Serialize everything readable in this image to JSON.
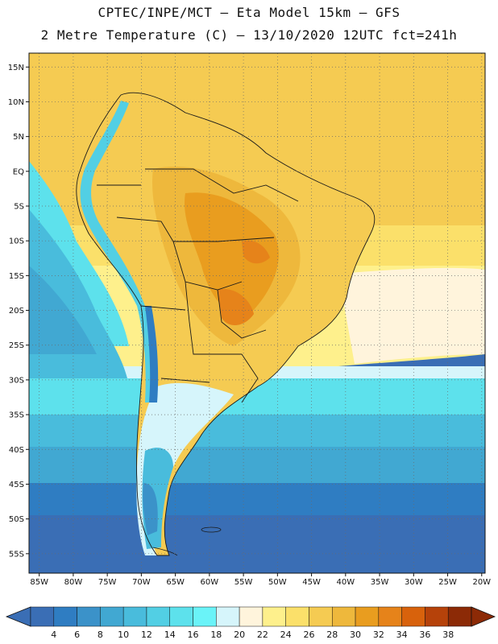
{
  "header": {
    "title_line1": "CPTEC/INPE/MCT —  Eta Model 15km — GFS",
    "title_line2": "2 Metre Temperature (C) — 13/10/2020 12UTC fct=241h"
  },
  "map": {
    "lat_labels": [
      "15N",
      "10N",
      "5N",
      "EQ",
      "5S",
      "10S",
      "15S",
      "20S",
      "25S",
      "30S",
      "35S",
      "40S",
      "45S",
      "50S",
      "55S"
    ],
    "lon_labels": [
      "85W",
      "80W",
      "75W",
      "70W",
      "65W",
      "60W",
      "55W",
      "50W",
      "45W",
      "40W",
      "35W",
      "30W",
      "25W",
      "20W"
    ],
    "lat_range": [
      15,
      -55
    ],
    "lon_range": [
      -85,
      -20
    ],
    "gridlines": "dotted"
  },
  "colorbar": {
    "levels": [
      "4",
      "6",
      "8",
      "10",
      "12",
      "14",
      "16",
      "18",
      "20",
      "22",
      "24",
      "26",
      "28",
      "30",
      "32",
      "34",
      "36",
      "38"
    ],
    "colors": [
      "#3a6eb5",
      "#2f7dc2",
      "#3b92c9",
      "#41a8d2",
      "#49bcdc",
      "#52cfe4",
      "#5de1ec",
      "#6af3f8",
      "#d6f5fb",
      "#fff4dc",
      "#fef08c",
      "#fbe06a",
      "#f5cb52",
      "#eeb83c",
      "#e99d1f",
      "#e6831a",
      "#d8620c",
      "#b6420a",
      "#8c2a06"
    ]
  },
  "icons": {
    "left_arrow": "colorbar-left-arrow-icon",
    "right_arrow": "colorbar-right-arrow-icon"
  }
}
